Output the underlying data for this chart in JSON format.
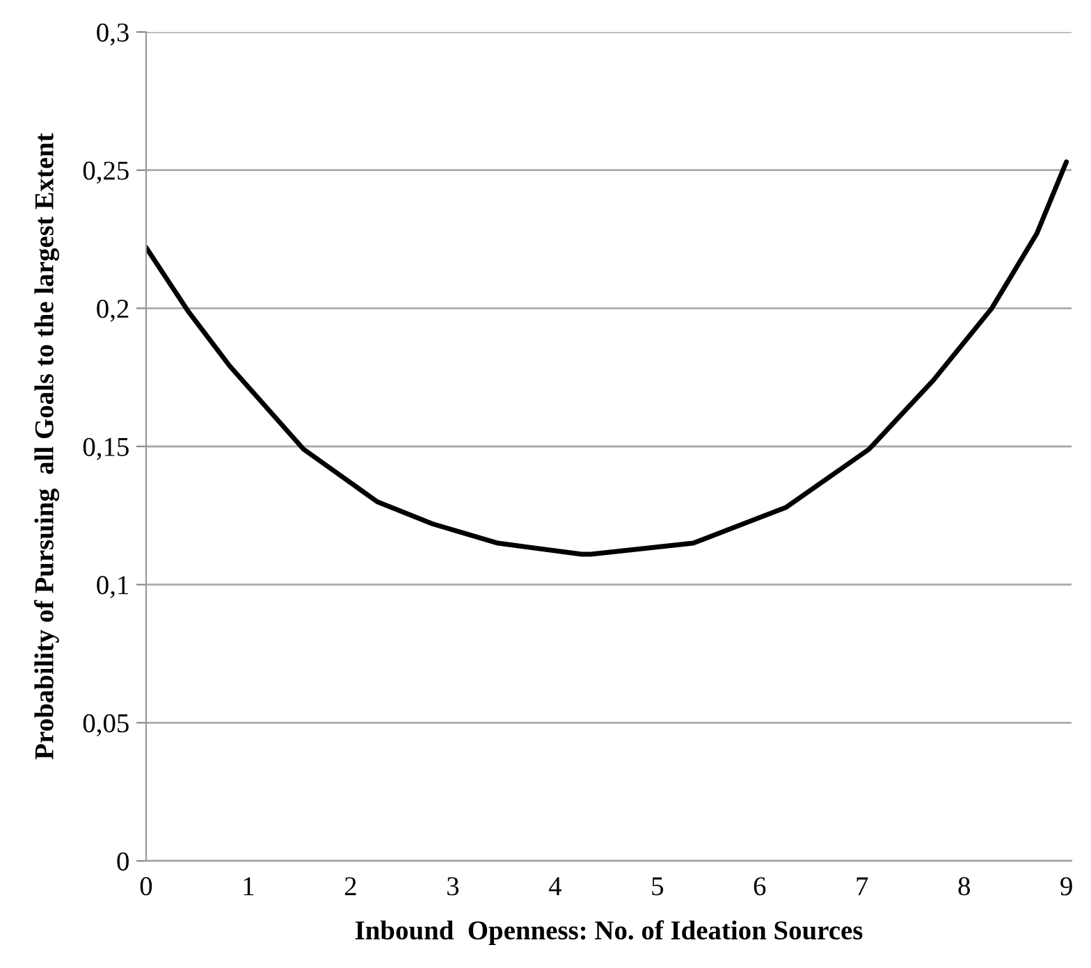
{
  "chart_data": {
    "type": "line",
    "xlabel": "Inbound  Openness: No. of Ideation Sources",
    "ylabel": "Probability of Pursuing  all Goals to the largest Extent",
    "series": [
      {
        "color": "#000000",
        "x": [
          0,
          0.41,
          0.82,
          1.54,
          2.26,
          2.8,
          3.44,
          4.26,
          4.35,
          5.35,
          6.26,
          7.07,
          7.7,
          8.27,
          8.71,
          9
        ],
        "values": [
          0.222,
          0.199,
          0.179,
          0.149,
          0.13,
          0.122,
          0.115,
          0.111,
          0.111,
          0.115,
          0.128,
          0.149,
          0.174,
          0.2,
          0.227,
          0.253
        ]
      }
    ],
    "xlim": [
      0,
      9.05
    ],
    "xticks": [
      0,
      1,
      2,
      3,
      4,
      5,
      6,
      7,
      8,
      9
    ],
    "ylim": [
      0,
      0.3
    ],
    "yticks": [
      0,
      {
        "value": 0.05,
        "label": "0,05"
      },
      {
        "value": 0.1,
        "label": "0,1"
      },
      {
        "value": 0.15,
        "label": "0,15"
      },
      {
        "value": 0.2,
        "label": "0,2"
      },
      {
        "value": 0.25,
        "label": "0,25"
      },
      {
        "value": 0.3,
        "label": "0,3"
      }
    ],
    "grid": "y",
    "marker": "none",
    "line_style": "solid",
    "legend": false
  }
}
